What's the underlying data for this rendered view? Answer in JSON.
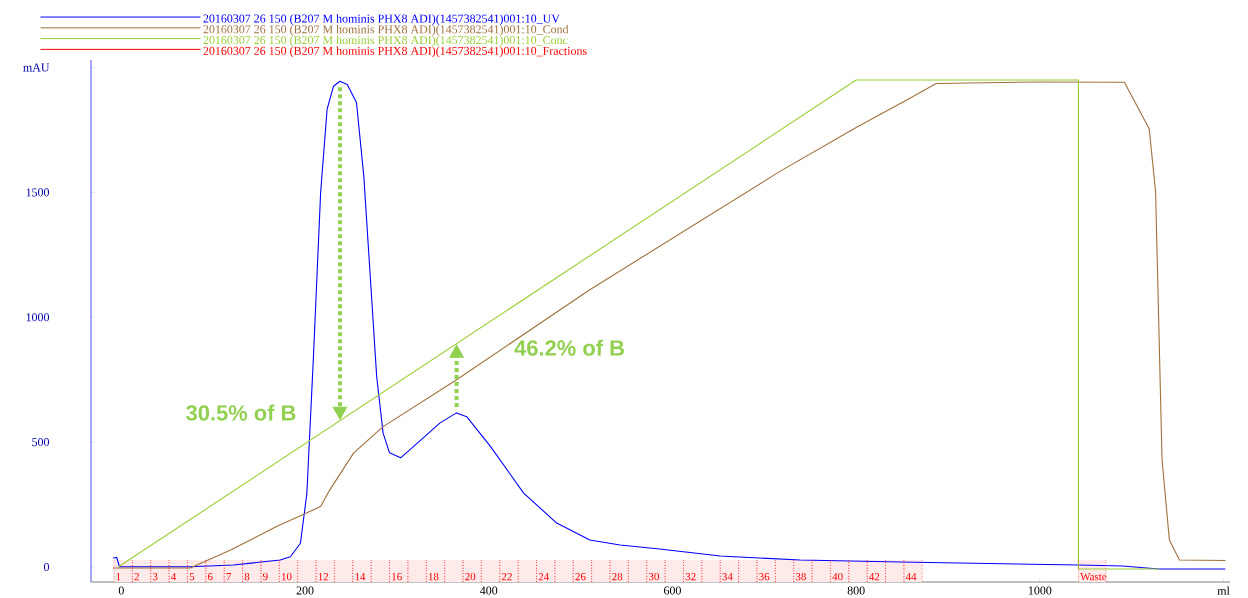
{
  "chart_data": {
    "type": "line",
    "xlim": [
      -33,
      1207
    ],
    "ylim": [
      -60,
      2030
    ],
    "xticks": [
      0,
      200,
      400,
      600,
      800,
      1000,
      {
        "value": 1200,
        "label": "ml"
      }
    ],
    "yticks": [
      0,
      500,
      1000,
      1500,
      {
        "value": 2000,
        "label": "mAU"
      }
    ],
    "legend": "top left",
    "annotations": [
      {
        "text": "30.5% of B",
        "x": 238,
        "y": 586
      },
      {
        "text": "46.2% of B",
        "x": 365,
        "y": 894
      },
      "20160307 26 150 (B207 M hominis PHX8 ADI)(1457382541)001:10_Fractions"
    ],
    "bands": [
      {
        "axis": "x",
        "from": -8,
        "to": 12,
        "label": "1",
        "color": "#ffeaea"
      },
      {
        "axis": "x",
        "from": 12,
        "to": 32,
        "label": "2",
        "color": "#ffeaea"
      },
      {
        "axis": "x",
        "from": 32,
        "to": 52,
        "label": "3",
        "color": "#ffeaea"
      },
      {
        "axis": "x",
        "from": 52,
        "to": 72,
        "label": "4",
        "color": "#ffeaea"
      },
      {
        "axis": "x",
        "from": 72,
        "to": 92,
        "label": "5",
        "color": "#ffeaea"
      },
      {
        "axis": "x",
        "from": 92,
        "to": 112,
        "label": "6",
        "color": "#ffeaea"
      },
      {
        "axis": "x",
        "from": 112,
        "to": 132,
        "label": "7",
        "color": "#ffeaea"
      },
      {
        "axis": "x",
        "from": 132,
        "to": 152,
        "label": "8",
        "color": "#ffeaea"
      },
      {
        "axis": "x",
        "from": 152,
        "to": 172,
        "label": "9",
        "color": "#ffeaea"
      },
      {
        "axis": "x",
        "from": 172,
        "to": 192,
        "label": "10",
        "color": "#ffeaea"
      },
      {
        "axis": "x",
        "from": 192,
        "to": 212,
        "color": "#ffeaea"
      },
      {
        "axis": "x",
        "from": 212,
        "to": 232,
        "label": "12",
        "color": "#ffeaea"
      },
      {
        "axis": "x",
        "from": 232,
        "to": 252,
        "color": "#ffeaea"
      },
      {
        "axis": "x",
        "from": 252,
        "to": 272,
        "label": "14",
        "color": "#ffeaea"
      },
      {
        "axis": "x",
        "from": 272,
        "to": 292,
        "color": "#ffeaea"
      },
      {
        "axis": "x",
        "from": 292,
        "to": 312,
        "label": "16",
        "color": "#ffeaea"
      },
      {
        "axis": "x",
        "from": 312,
        "to": 332,
        "color": "#ffeaea"
      },
      {
        "axis": "x",
        "from": 332,
        "to": 352,
        "label": "18",
        "color": "#ffeaea"
      },
      {
        "axis": "x",
        "from": 352,
        "to": 372,
        "color": "#ffeaea"
      },
      {
        "axis": "x",
        "from": 372,
        "to": 392,
        "label": "20",
        "color": "#ffeaea"
      },
      {
        "axis": "x",
        "from": 392,
        "to": 412,
        "color": "#ffeaea"
      },
      {
        "axis": "x",
        "from": 412,
        "to": 432,
        "label": "22",
        "color": "#ffeaea"
      },
      {
        "axis": "x",
        "from": 432,
        "to": 452,
        "color": "#ffeaea"
      },
      {
        "axis": "x",
        "from": 452,
        "to": 472,
        "label": "24",
        "color": "#ffeaea"
      },
      {
        "axis": "x",
        "from": 472,
        "to": 492,
        "color": "#ffeaea"
      },
      {
        "axis": "x",
        "from": 492,
        "to": 512,
        "label": "26",
        "color": "#ffeaea"
      },
      {
        "axis": "x",
        "from": 512,
        "to": 532,
        "color": "#ffeaea"
      },
      {
        "axis": "x",
        "from": 532,
        "to": 552,
        "label": "28",
        "color": "#ffeaea"
      },
      {
        "axis": "x",
        "from": 552,
        "to": 572,
        "color": "#ffeaea"
      },
      {
        "axis": "x",
        "from": 572,
        "to": 592,
        "label": "30",
        "color": "#ffeaea"
      },
      {
        "axis": "x",
        "from": 592,
        "to": 612,
        "color": "#ffeaea"
      },
      {
        "axis": "x",
        "from": 612,
        "to": 632,
        "label": "32",
        "color": "#ffeaea"
      },
      {
        "axis": "x",
        "from": 632,
        "to": 652,
        "color": "#ffeaea"
      },
      {
        "axis": "x",
        "from": 652,
        "to": 672,
        "label": "34",
        "color": "#ffeaea"
      },
      {
        "axis": "x",
        "from": 672,
        "to": 692,
        "color": "#ffeaea"
      },
      {
        "axis": "x",
        "from": 692,
        "to": 712,
        "label": "36",
        "color": "#ffeaea"
      },
      {
        "axis": "x",
        "from": 712,
        "to": 732,
        "color": "#ffeaea"
      },
      {
        "axis": "x",
        "from": 732,
        "to": 752,
        "label": "38",
        "color": "#ffeaea"
      },
      {
        "axis": "x",
        "from": 752,
        "to": 772,
        "color": "#ffeaea"
      },
      {
        "axis": "x",
        "from": 772,
        "to": 792,
        "label": "40",
        "color": "#ffeaea"
      },
      {
        "axis": "x",
        "from": 792,
        "to": 812,
        "color": "#ffeaea"
      },
      {
        "axis": "x",
        "from": 812,
        "to": 832,
        "label": "42",
        "color": "#ffeaea"
      },
      {
        "axis": "x",
        "from": 832,
        "to": 852,
        "color": "#ffeaea"
      },
      {
        "axis": "x",
        "from": 852,
        "to": 872,
        "label": "44",
        "color": "#ffeaea"
      },
      {
        "axis": "x",
        "from": 1042,
        "to": 1072,
        "label": "Waste",
        "color": "#ffeaea"
      }
    ],
    "series": [
      {
        "name": "20160307 26 150 (B207 M hominis PHX8 ADI)(1457382541)001:10_UV",
        "color": "#0000ff",
        "x": [
          -9,
          -5,
          -2,
          75,
          122,
          173,
          184,
          195,
          202,
          209,
          217,
          224,
          231,
          238,
          246,
          256,
          264,
          271,
          278,
          285,
          292,
          304,
          314,
          347,
          365,
          376,
          402,
          438,
          474,
          510,
          543,
          586,
          652,
          739,
          848,
          1042,
          1090,
          1130,
          1202
        ],
        "values": [
          36,
          38,
          1,
          1,
          8,
          28,
          41,
          95,
          295,
          830,
          1500,
          1832,
          1925,
          1945,
          1932,
          1860,
          1564,
          1164,
          763,
          536,
          457,
          437,
          469,
          577,
          617,
          602,
          482,
          296,
          176,
          108,
          88,
          72,
          44,
          28,
          20,
          8,
          4,
          -8,
          -8
        ]
      },
      {
        "name": "20160307 26 150 (B207 M hominis PHX8 ADI)(1457382541)001:10_Cond",
        "color": "#a0703c",
        "x": [
          -9,
          75,
          119,
          169,
          217,
          227,
          253,
          285,
          365,
          510,
          717,
          800,
          860,
          887,
          1000,
          1092,
          1119,
          1126,
          1133,
          1141,
          1152,
          1202
        ],
        "values": [
          -4,
          -4,
          68,
          162,
          242,
          309,
          457,
          562,
          750,
          1110,
          1584,
          1760,
          1880,
          1936,
          1942,
          1941,
          1755,
          1502,
          430,
          108,
          28,
          26
        ]
      },
      {
        "name": "20160307 26 150 (B207 M hominis PHX8 ADI)(1457382541)001:10_Conc",
        "color": "#9acd32",
        "x": [
          -3,
          800,
          1042,
          1042,
          1130
        ],
        "values": [
          1,
          1950,
          1950,
          -8,
          -8
        ]
      }
    ]
  }
}
